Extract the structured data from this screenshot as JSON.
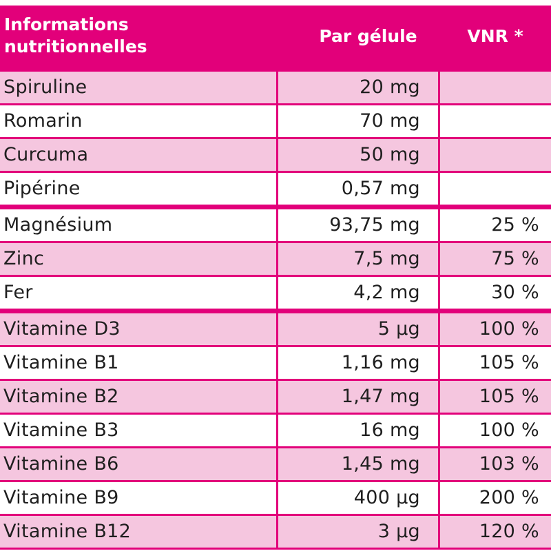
{
  "header": {
    "col1_line1": "Informations",
    "col1_line2": "nutritionnelles",
    "col2": "Par gélule",
    "col3": "VNR *"
  },
  "colors": {
    "accent": "#E2007A",
    "row_pink": "#F5C6DF",
    "row_white": "#FFFFFF",
    "text": "#1F1F1F"
  },
  "rows": [
    {
      "name": "Spiruline",
      "amount": "20 mg",
      "vnr": ""
    },
    {
      "name": "Romarin",
      "amount": "70 mg",
      "vnr": ""
    },
    {
      "name": "Curcuma",
      "amount": "50 mg",
      "vnr": ""
    },
    {
      "name": "Pipérine",
      "amount": "0,57 mg",
      "vnr": ""
    },
    {
      "name": "Magnésium",
      "amount": "93,75 mg",
      "vnr": "25 %"
    },
    {
      "name": "Zinc",
      "amount": "7,5 mg",
      "vnr": "75 %"
    },
    {
      "name": "Fer",
      "amount": "4,2 mg",
      "vnr": "30 %"
    },
    {
      "name": "Vitamine D3",
      "amount": "5 µg",
      "vnr": "100 %"
    },
    {
      "name": "Vitamine B1",
      "amount": "1,16 mg",
      "vnr": "105 %"
    },
    {
      "name": "Vitamine B2",
      "amount": "1,47 mg",
      "vnr": "105 %"
    },
    {
      "name": "Vitamine B3",
      "amount": "16 mg",
      "vnr": "100 %"
    },
    {
      "name": "Vitamine B6",
      "amount": "1,45 mg",
      "vnr": "103 %"
    },
    {
      "name": "Vitamine B9",
      "amount": "400 µg",
      "vnr": "200 %"
    },
    {
      "name": "Vitamine B12",
      "amount": "3 µg",
      "vnr": "120 %"
    }
  ]
}
